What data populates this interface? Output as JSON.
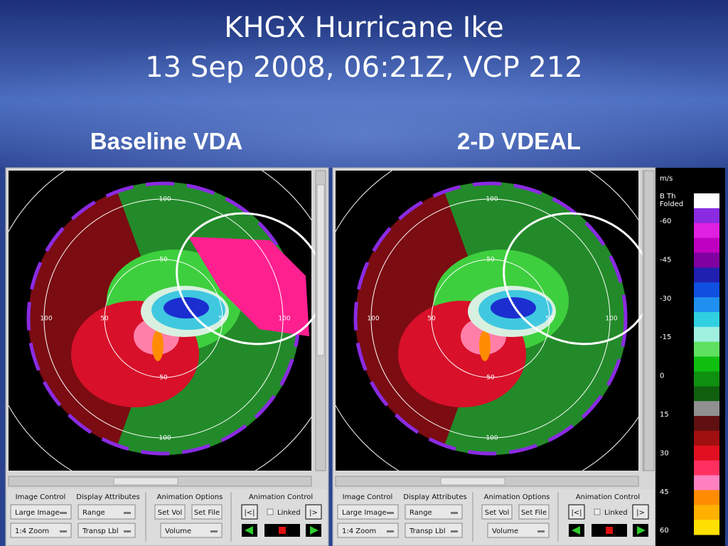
{
  "header": {
    "title": [
      "KHGX Hurricane Ike",
      "13 Sep 2008, 06:21Z, VCP 212"
    ],
    "labels": [
      "Baseline VDA",
      "2-D VDEAL"
    ]
  },
  "range_labels": [
    "100",
    "50",
    "100",
    "50",
    "50",
    "100",
    "50",
    "100"
  ],
  "controls": {
    "sections": [
      "Image Control",
      "Display Attributes",
      "Animation Options",
      "Animation Control"
    ],
    "buttons": [
      "Large Image",
      "Range",
      "Set Vol",
      "Set File",
      "|<|",
      "Linked",
      "|>",
      "1:4 Zoom",
      "Transp Lbl",
      "Volume"
    ]
  },
  "colorbar": {
    "unit": "m/s",
    "folded": [
      "B Th",
      "Folded"
    ],
    "labels": [
      "-60",
      "-45",
      "-30",
      "-15",
      "0",
      "15",
      "30",
      "45",
      "60"
    ]
  }
}
